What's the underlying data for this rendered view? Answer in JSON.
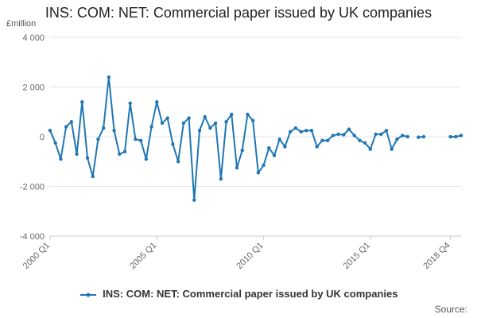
{
  "chart_data": {
    "type": "line",
    "title": "INS: COM: NET: Commercial paper issued by UK companies",
    "ylabel": "£million",
    "xlabel": "",
    "ylim": [
      -4000,
      4000
    ],
    "yticks": [
      4000,
      2000,
      0,
      -2000,
      -4000
    ],
    "ytick_labels": [
      "4 000",
      "2 000",
      "0",
      "-2 000",
      "-4 000"
    ],
    "xticks": [
      "2000 Q1",
      "2005 Q1",
      "2010 Q1",
      "2015 Q1",
      "2018 Q4"
    ],
    "grid": true,
    "legend_position": "bottom",
    "series": [
      {
        "name": "INS: COM: NET: Commercial paper issued by UK companies",
        "color": "#1f77b4",
        "values": [
          250,
          -250,
          -900,
          400,
          600,
          -700,
          1400,
          -850,
          -1600,
          -100,
          350,
          2400,
          250,
          -700,
          -600,
          1350,
          -100,
          -150,
          -900,
          400,
          1400,
          550,
          750,
          -300,
          -1000,
          550,
          750,
          -2550,
          250,
          800,
          350,
          550,
          -1700,
          600,
          900,
          -1250,
          -550,
          900,
          650,
          -1450,
          -1150,
          -450,
          -750,
          -100,
          -400,
          200,
          350,
          200,
          250,
          250,
          -400,
          -150,
          -150,
          50,
          100,
          80,
          300,
          50,
          -150,
          -250,
          -500,
          100,
          100,
          250,
          -500,
          -100,
          50,
          0,
          null,
          -20,
          0,
          null,
          null,
          null,
          null,
          0,
          0,
          50
        ]
      }
    ]
  },
  "source_label": "Source:"
}
